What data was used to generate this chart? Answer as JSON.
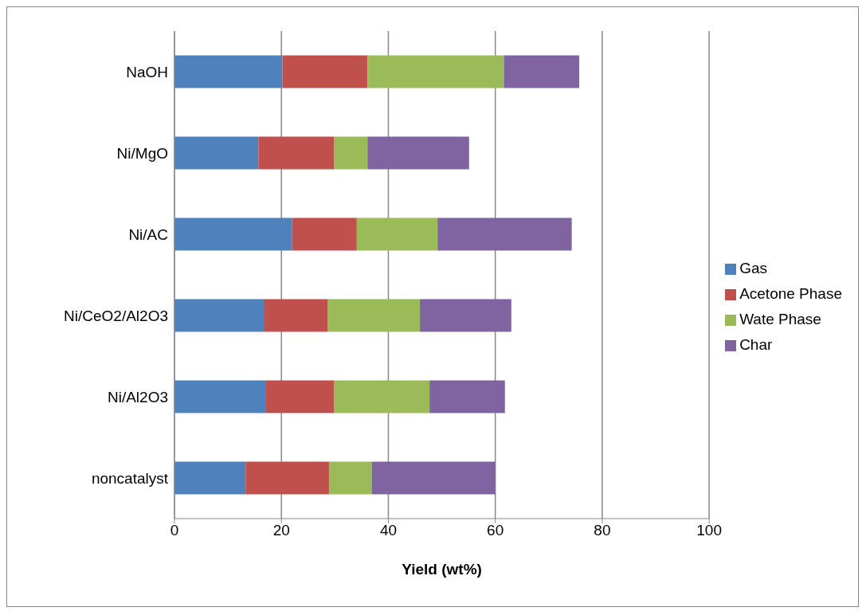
{
  "chart_data": {
    "type": "bar",
    "orientation": "horizontal",
    "stacked": true,
    "xlabel": "Yield (wt%)",
    "categories": [
      "NaOH",
      "Ni/MgO",
      "Ni/AC",
      "Ni/CeO2/Al2O3",
      "Ni/Al2O3",
      "noncatalyst"
    ],
    "series": [
      {
        "name": "Gas",
        "color": "#4f81bd",
        "values": [
          20.2,
          15.7,
          22.0,
          16.7,
          17.0,
          13.3
        ]
      },
      {
        "name": "Acetone Phase",
        "color": "#c0504d",
        "values": [
          15.9,
          14.1,
          12.1,
          12.0,
          12.8,
          15.6
        ]
      },
      {
        "name": "Wate Phase",
        "color": "#9bbb59",
        "values": [
          25.5,
          6.3,
          15.1,
          17.2,
          17.9,
          8.0
        ]
      },
      {
        "name": "Char",
        "color": "#8064a2",
        "values": [
          14.1,
          19.0,
          25.1,
          17.1,
          14.1,
          23.1
        ]
      }
    ],
    "xlim": [
      0,
      100
    ],
    "xticks": [
      0,
      20,
      40,
      60,
      80,
      100
    ],
    "grid": "x",
    "legend": "right"
  }
}
